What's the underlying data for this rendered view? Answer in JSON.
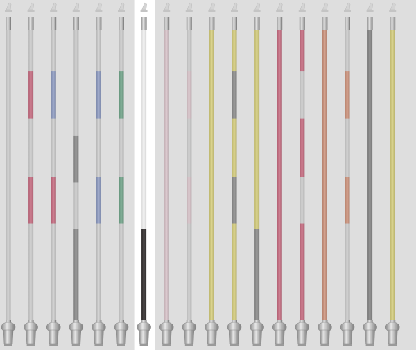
{
  "title": "",
  "selected_pole": 6,
  "colors": {
    "background": "#dedede",
    "highlight": "#ffffff",
    "rod_light": "#d0d0d0",
    "red": "#c96a80",
    "blue": "#8e9cc4",
    "green": "#6fa589",
    "gray": "#8c8c8c",
    "black": "#2e2a2a",
    "white": "#f7f7f7",
    "pale_pink": "#dcc6cc",
    "yellow": "#d8d07c",
    "salmon": "#cf937b",
    "dark_gray": "#858585",
    "cap": "#b5b5b5",
    "base": "#a8a8a8"
  },
  "poles": [
    {
      "name": "pole-1",
      "segments": [
        [
          "rod_light",
          0,
          1
        ]
      ]
    },
    {
      "name": "pole-2",
      "segments": [
        [
          "rod_light",
          0,
          1
        ],
        [
          "red",
          0.14,
          0.3
        ],
        [
          "red",
          0.5,
          0.66
        ]
      ]
    },
    {
      "name": "pole-3",
      "segments": [
        [
          "rod_light",
          0,
          1
        ],
        [
          "blue",
          0.14,
          0.3
        ],
        [
          "red",
          0.5,
          0.66
        ]
      ]
    },
    {
      "name": "pole-4",
      "segments": [
        [
          "rod_light",
          0,
          1
        ],
        [
          "gray",
          0.36,
          0.52
        ],
        [
          "gray",
          0.68,
          1
        ]
      ]
    },
    {
      "name": "pole-5",
      "segments": [
        [
          "rod_light",
          0,
          1
        ],
        [
          "blue",
          0.14,
          0.3
        ],
        [
          "blue",
          0.5,
          0.66
        ]
      ]
    },
    {
      "name": "pole-6",
      "segments": [
        [
          "rod_light",
          0,
          1
        ],
        [
          "green",
          0.14,
          0.3
        ],
        [
          "green",
          0.5,
          0.66
        ]
      ]
    },
    {
      "name": "pole-7",
      "segments": [
        [
          "white",
          0,
          0.68
        ],
        [
          "black",
          0.68,
          1
        ]
      ]
    },
    {
      "name": "pole-8",
      "segments": [
        [
          "pale_pink",
          0,
          1
        ]
      ]
    },
    {
      "name": "pole-9",
      "segments": [
        [
          "rod_light",
          0,
          1
        ],
        [
          "pale_pink",
          0.14,
          0.3
        ],
        [
          "pale_pink",
          0.5,
          0.66
        ]
      ]
    },
    {
      "name": "pole-10",
      "segments": [
        [
          "yellow",
          0,
          1
        ]
      ]
    },
    {
      "name": "pole-11",
      "segments": [
        [
          "yellow",
          0,
          1
        ],
        [
          "gray",
          0.14,
          0.3
        ],
        [
          "gray",
          0.5,
          0.66
        ]
      ]
    },
    {
      "name": "pole-12",
      "segments": [
        [
          "yellow",
          0,
          0.68
        ],
        [
          "gray",
          0.68,
          1
        ]
      ]
    },
    {
      "name": "pole-13",
      "segments": [
        [
          "red",
          0,
          1
        ]
      ]
    },
    {
      "name": "pole-14",
      "segments": [
        [
          "rod_light",
          0,
          1
        ],
        [
          "red",
          0,
          0.14
        ],
        [
          "red",
          0.3,
          0.5
        ],
        [
          "red",
          0.66,
          1
        ]
      ]
    },
    {
      "name": "pole-15",
      "segments": [
        [
          "salmon",
          0,
          1
        ]
      ]
    },
    {
      "name": "pole-16",
      "segments": [
        [
          "rod_light",
          0,
          1
        ],
        [
          "salmon",
          0.14,
          0.3
        ],
        [
          "salmon",
          0.5,
          0.66
        ]
      ]
    },
    {
      "name": "pole-17",
      "segments": [
        [
          "dark_gray",
          0,
          1
        ]
      ]
    },
    {
      "name": "pole-18",
      "segments": [
        [
          "yellow",
          0,
          1
        ]
      ]
    }
  ]
}
